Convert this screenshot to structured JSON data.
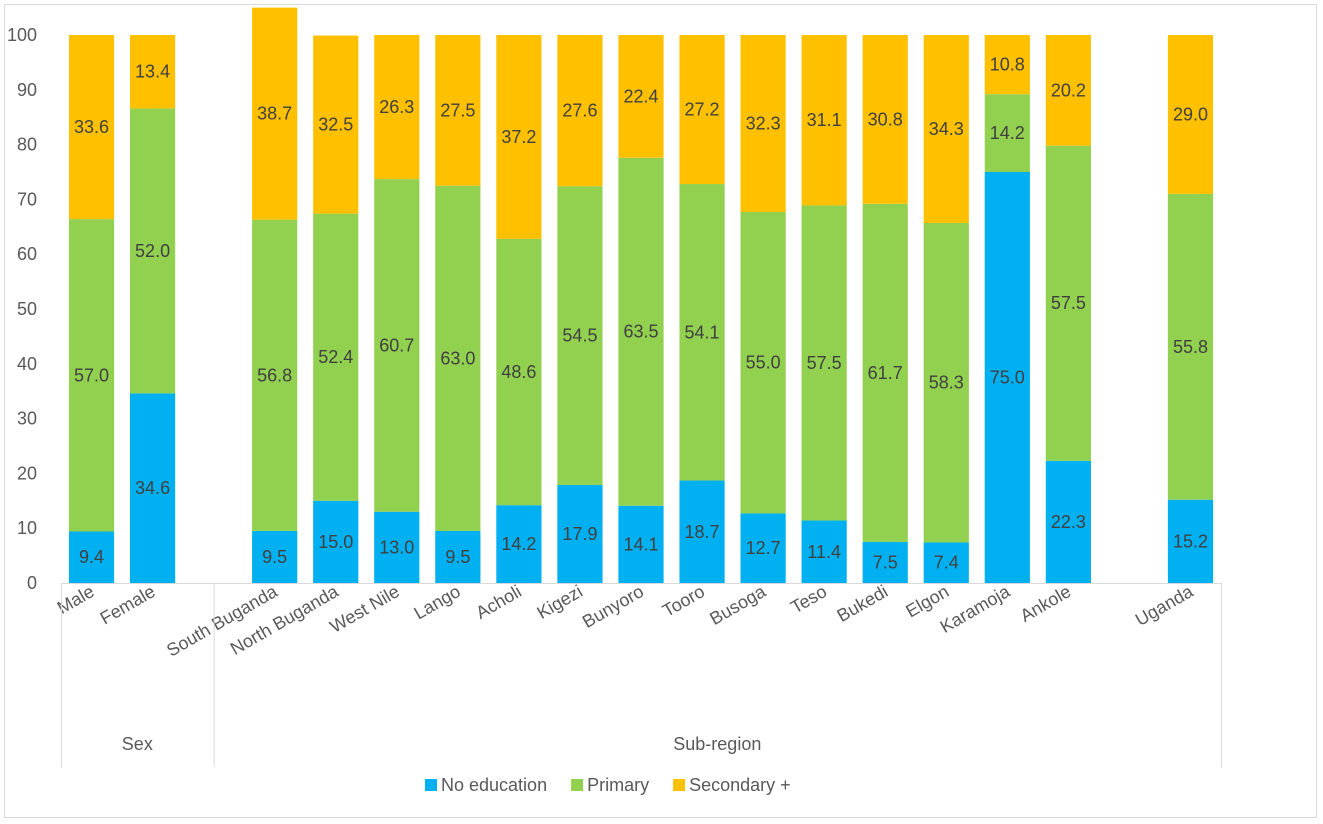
{
  "chart_data": {
    "type": "bar",
    "stacked": true,
    "categories": [
      "Male",
      "Female",
      "",
      "South Buganda",
      "North Buganda",
      "West Nile",
      "Lango",
      "Acholi",
      "Kigezi",
      "Bunyoro",
      "Tooro",
      "Busoga",
      "Teso",
      "Bukedi",
      "Elgon",
      "Karamoja",
      "Ankole",
      "",
      "Uganda"
    ],
    "groups": [
      {
        "label": "Sex",
        "categories": [
          "Male",
          "Female"
        ]
      },
      {
        "label": "Sub-region",
        "categories": [
          "South Buganda",
          "North Buganda",
          "West Nile",
          "Lango",
          "Acholi",
          "Kigezi",
          "Bunyoro",
          "Tooro",
          "Busoga",
          "Teso",
          "Bukedi",
          "Elgon",
          "Karamoja",
          "Ankole",
          "Uganda"
        ]
      }
    ],
    "series": [
      {
        "name": "No education",
        "color": "#00b0f0",
        "values": [
          9.4,
          34.6,
          null,
          9.5,
          15.0,
          13.0,
          9.5,
          14.2,
          17.9,
          14.1,
          18.7,
          12.7,
          11.4,
          7.5,
          7.4,
          75.0,
          22.3,
          null,
          15.2
        ],
        "labels": [
          "9.4",
          "34.6",
          "",
          "9.5",
          "15.0",
          "13.0",
          "9.5",
          "14.2",
          "17.9",
          "14.1",
          "18.7",
          "12.7",
          "11.4",
          "7.5",
          "7.4",
          "75.0",
          "22.3",
          "",
          "15.2"
        ]
      },
      {
        "name": "Primary",
        "color": "#92d050",
        "values": [
          57.0,
          52.0,
          null,
          56.8,
          52.4,
          60.7,
          63.0,
          48.6,
          54.5,
          63.5,
          54.1,
          55.0,
          57.5,
          61.7,
          58.3,
          14.2,
          57.5,
          null,
          55.8
        ],
        "labels": [
          "57.0",
          "52.0",
          "",
          "56.8",
          "52.4",
          "60.7",
          "63.0",
          "48.6",
          "54.5",
          "63.5",
          "54.1",
          "55.0",
          "57.5",
          "61.7",
          "58.3",
          "14.2",
          "57.5",
          "",
          "55.8"
        ]
      },
      {
        "name": "Secondary +",
        "color": "#ffc000",
        "values": [
          33.6,
          13.4,
          null,
          38.7,
          32.5,
          26.3,
          27.5,
          37.2,
          27.6,
          22.4,
          27.2,
          32.3,
          31.1,
          30.8,
          34.3,
          10.8,
          20.2,
          null,
          29.0
        ],
        "labels": [
          "33.6",
          "13.4",
          "",
          "38.7",
          "32.5",
          "26.3",
          "27.5",
          "37.2",
          "27.6",
          "22.4",
          "27.2",
          "32.3",
          "31.1",
          "30.8",
          "34.3",
          "10.8",
          "20.2",
          "",
          "29.0"
        ]
      }
    ],
    "yticks": [
      "0",
      "10",
      "20",
      "30",
      "40",
      "50",
      "60",
      "70",
      "80",
      "90",
      "100"
    ],
    "ylim": [
      0,
      100
    ],
    "grid": false,
    "legend": "bottom"
  }
}
